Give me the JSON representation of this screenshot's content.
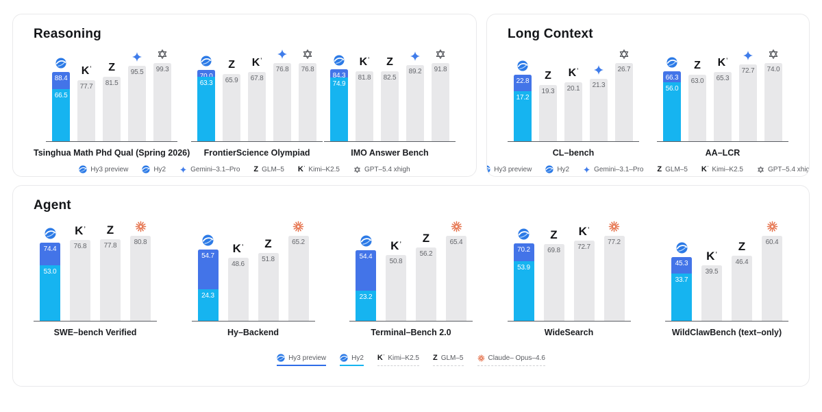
{
  "colors": {
    "hy3_blue": "#4374e8",
    "hy2_cyan": "#16b4f0",
    "bar_gray": "#e8e8ea",
    "gemini_blue": "#3f7cea",
    "gpt_gray": "#4d4f54",
    "claude_orange": "#e5714b",
    "axis": "#595c61"
  },
  "models": {
    "hy3": {
      "label": "Hy3 preview",
      "icon": "hy-logo"
    },
    "hy2": {
      "label": "Hy2",
      "icon": "hy-logo"
    },
    "gemini": {
      "label": "Gemini–3.1–Pro",
      "icon": "gemini-sparkle"
    },
    "glm": {
      "label": "GLM–5",
      "icon": "glm-z"
    },
    "kimi": {
      "label": "Kimi–K2.5",
      "icon": "kimi-k"
    },
    "gpt": {
      "label": "GPT–5.4 xhigh",
      "icon": "gpt-flower"
    },
    "claude": {
      "label": "Claude– Opus–4.6",
      "icon": "claude-asterisk"
    }
  },
  "panels": [
    {
      "id": "reasoning",
      "title": "Reasoning",
      "chart_indices": [
        0,
        1,
        2
      ],
      "legend": [
        "hy3",
        "hy2",
        "gemini",
        "glm",
        "kimi",
        "gpt"
      ]
    },
    {
      "id": "long-context",
      "title": "Long Context",
      "chart_indices": [
        3,
        4
      ],
      "legend": [
        "hy3",
        "hy2",
        "gemini",
        "glm",
        "kimi",
        "gpt"
      ]
    },
    {
      "id": "agent",
      "title": "Agent",
      "chart_indices": [
        5,
        6,
        7,
        8,
        9
      ],
      "legend": [
        "hy3",
        "hy2",
        "kimi",
        "glm",
        "claude"
      ]
    }
  ],
  "chart_data": [
    {
      "panel": "Reasoning",
      "type": "bar",
      "title": "Tsinghua Math Phd Qual (Spring 2026)",
      "categories": [
        "Hy3 preview",
        "Hy2",
        "Kimi-K2.5",
        "GLM-5",
        "Gemini-3.1-Pro",
        "GPT-5.4 xhigh"
      ],
      "values": [
        88.4,
        66.5,
        77.7,
        81.5,
        95.5,
        99.3
      ],
      "bars": [
        {
          "model": "hy",
          "hy3": "88.4",
          "hy2": "66.5"
        },
        {
          "model": "kimi",
          "value": "77.7"
        },
        {
          "model": "glm",
          "value": "81.5"
        },
        {
          "model": "gemini",
          "value": "95.5"
        },
        {
          "model": "gpt",
          "value": "99.3"
        }
      ]
    },
    {
      "panel": "Reasoning",
      "type": "bar",
      "title": "FrontierScience Olympiad",
      "categories": [
        "Hy3 preview",
        "Hy2",
        "GLM-5",
        "Kimi-K2.5",
        "Gemini-3.1-Pro",
        "GPT-5.4 xhigh"
      ],
      "values": [
        70.0,
        63.3,
        65.9,
        67.8,
        76.8,
        76.8
      ],
      "bars": [
        {
          "model": "hy",
          "hy3": "70.0",
          "hy2": "63.3"
        },
        {
          "model": "glm",
          "value": "65.9"
        },
        {
          "model": "kimi",
          "value": "67.8"
        },
        {
          "model": "gemini",
          "value": "76.8"
        },
        {
          "model": "gpt",
          "value": "76.8"
        }
      ]
    },
    {
      "panel": "Reasoning",
      "type": "bar",
      "title": "IMO Answer Bench",
      "categories": [
        "Hy3 preview",
        "Hy2",
        "Kimi-K2.5",
        "GLM-5",
        "Gemini-3.1-Pro",
        "GPT-5.4 xhigh"
      ],
      "values": [
        84.3,
        74.9,
        81.8,
        82.5,
        89.2,
        91.8
      ],
      "bars": [
        {
          "model": "hy",
          "hy3": "84.3",
          "hy2": "74.9"
        },
        {
          "model": "kimi",
          "value": "81.8"
        },
        {
          "model": "glm",
          "value": "82.5"
        },
        {
          "model": "gemini",
          "value": "89.2"
        },
        {
          "model": "gpt",
          "value": "91.8"
        }
      ]
    },
    {
      "panel": "Long Context",
      "type": "bar",
      "title": "CL–bench",
      "categories": [
        "Hy3 preview",
        "Hy2",
        "GLM-5",
        "Kimi-K2.5",
        "Gemini-3.1-Pro",
        "GPT-5.4 xhigh"
      ],
      "values": [
        22.8,
        17.2,
        19.3,
        20.1,
        21.3,
        26.7
      ],
      "bars": [
        {
          "model": "hy",
          "hy3": "22.8",
          "hy2": "17.2"
        },
        {
          "model": "glm",
          "value": "19.3"
        },
        {
          "model": "kimi",
          "value": "20.1"
        },
        {
          "model": "gemini",
          "value": "21.3"
        },
        {
          "model": "gpt",
          "value": "26.7"
        }
      ]
    },
    {
      "panel": "Long Context",
      "type": "bar",
      "title": "AA–LCR",
      "categories": [
        "Hy3 preview",
        "Hy2",
        "GLM-5",
        "Kimi-K2.5",
        "Gemini-3.1-Pro",
        "GPT-5.4 xhigh"
      ],
      "values": [
        66.3,
        56.0,
        63.0,
        65.3,
        72.7,
        74.0
      ],
      "bars": [
        {
          "model": "hy",
          "hy3": "66.3",
          "hy2": "56.0"
        },
        {
          "model": "glm",
          "value": "63.0"
        },
        {
          "model": "kimi",
          "value": "65.3"
        },
        {
          "model": "gemini",
          "value": "72.7"
        },
        {
          "model": "gpt",
          "value": "74.0"
        }
      ]
    },
    {
      "panel": "Agent",
      "type": "bar",
      "title": "SWE–bench Verified",
      "categories": [
        "Hy3 preview",
        "Hy2",
        "Kimi-K2.5",
        "GLM-5",
        "Claude-Opus-4.6"
      ],
      "values": [
        74.4,
        53.0,
        76.8,
        77.8,
        80.8
      ],
      "bars": [
        {
          "model": "hy",
          "hy3": "74.4",
          "hy2": "53.0"
        },
        {
          "model": "kimi",
          "value": "76.8"
        },
        {
          "model": "glm",
          "value": "77.8"
        },
        {
          "model": "claude",
          "value": "80.8"
        }
      ]
    },
    {
      "panel": "Agent",
      "type": "bar",
      "title": "Hy–Backend",
      "categories": [
        "Hy3 preview",
        "Hy2",
        "Kimi-K2.5",
        "GLM-5",
        "Claude-Opus-4.6"
      ],
      "values": [
        54.7,
        24.3,
        48.6,
        51.8,
        65.2
      ],
      "bars": [
        {
          "model": "hy",
          "hy3": "54.7",
          "hy2": "24.3"
        },
        {
          "model": "kimi",
          "value": "48.6"
        },
        {
          "model": "glm",
          "value": "51.8"
        },
        {
          "model": "claude",
          "value": "65.2"
        }
      ]
    },
    {
      "panel": "Agent",
      "type": "bar",
      "title": "Terminal–Bench 2.0",
      "categories": [
        "Hy3 preview",
        "Hy2",
        "Kimi-K2.5",
        "GLM-5",
        "Claude-Opus-4.6"
      ],
      "values": [
        54.4,
        23.2,
        50.8,
        56.2,
        65.4
      ],
      "bars": [
        {
          "model": "hy",
          "hy3": "54.4",
          "hy2": "23.2"
        },
        {
          "model": "kimi",
          "value": "50.8"
        },
        {
          "model": "glm",
          "value": "56.2"
        },
        {
          "model": "claude",
          "value": "65.4"
        }
      ]
    },
    {
      "panel": "Agent",
      "type": "bar",
      "title": "WideSearch",
      "categories": [
        "Hy3 preview",
        "Hy2",
        "GLM-5",
        "Kimi-K2.5",
        "Claude-Opus-4.6"
      ],
      "values": [
        70.2,
        53.9,
        69.8,
        72.7,
        77.2
      ],
      "bars": [
        {
          "model": "hy",
          "hy3": "70.2",
          "hy2": "53.9"
        },
        {
          "model": "glm",
          "value": "69.8"
        },
        {
          "model": "kimi",
          "value": "72.7"
        },
        {
          "model": "claude",
          "value": "77.2"
        }
      ]
    },
    {
      "panel": "Agent",
      "type": "bar",
      "title": "WildClawBench (text–only)",
      "categories": [
        "Hy3 preview",
        "Hy2",
        "Kimi-K2.5",
        "GLM-5",
        "Claude-Opus-4.6"
      ],
      "values": [
        45.3,
        33.7,
        39.5,
        46.4,
        60.4
      ],
      "bars": [
        {
          "model": "hy",
          "hy3": "45.3",
          "hy2": "33.7"
        },
        {
          "model": "kimi",
          "value": "39.5"
        },
        {
          "model": "glm",
          "value": "46.4"
        },
        {
          "model": "claude",
          "value": "60.4"
        }
      ]
    }
  ]
}
